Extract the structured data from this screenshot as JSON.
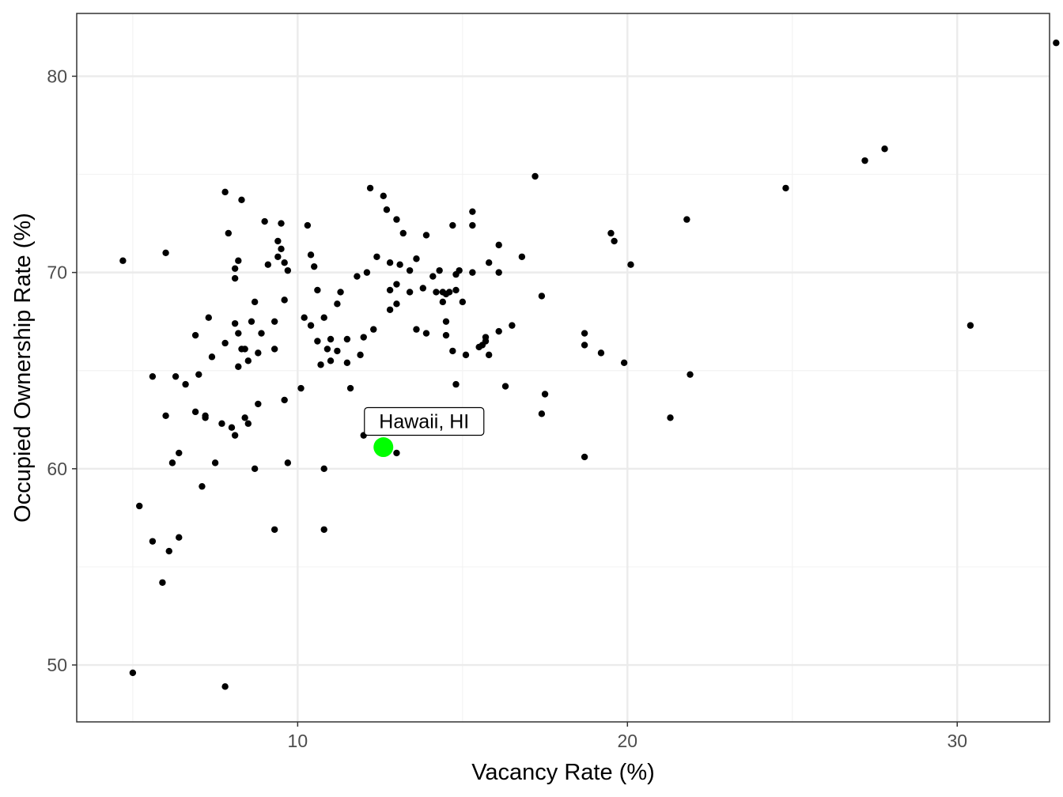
{
  "chart_data": {
    "type": "scatter",
    "title": "",
    "xlabel": "Vacancy Rate (%)",
    "ylabel": "Occupied Ownership Rate (%)",
    "xlim": [
      3.3,
      32.8
    ],
    "ylim": [
      47.1,
      83.2
    ],
    "x_major_ticks": [
      10,
      20,
      30
    ],
    "y_major_ticks": [
      50,
      60,
      70,
      80
    ],
    "x_tick_labels": [
      "10",
      "20",
      "30"
    ],
    "y_tick_labels": [
      "50",
      "60",
      "70",
      "80"
    ],
    "grid": true,
    "legend": "none",
    "colors": {
      "point": "#000000",
      "highlight": "#00ff00",
      "grid_major": "#ebebeb",
      "grid_minor": "#f3f3f3",
      "panel_border": "#333333",
      "tick_label": "#4d4d4d"
    },
    "highlight": {
      "label": "Hawaii, HI",
      "x": 12.6,
      "y": 61.1
    },
    "points": [
      [
        4.7,
        70.6
      ],
      [
        5.0,
        49.6
      ],
      [
        5.2,
        58.1
      ],
      [
        5.6,
        56.3
      ],
      [
        5.6,
        64.7
      ],
      [
        5.9,
        54.2
      ],
      [
        6.0,
        71.0
      ],
      [
        6.0,
        62.7
      ],
      [
        6.1,
        55.8
      ],
      [
        6.2,
        60.3
      ],
      [
        6.3,
        64.7
      ],
      [
        6.4,
        56.5
      ],
      [
        6.4,
        60.8
      ],
      [
        6.6,
        64.3
      ],
      [
        6.9,
        62.9
      ],
      [
        6.9,
        66.8
      ],
      [
        7.0,
        64.8
      ],
      [
        7.1,
        59.1
      ],
      [
        7.2,
        62.6
      ],
      [
        7.2,
        62.7
      ],
      [
        7.3,
        67.7
      ],
      [
        7.4,
        65.7
      ],
      [
        7.5,
        60.3
      ],
      [
        7.7,
        62.3
      ],
      [
        7.8,
        66.4
      ],
      [
        7.8,
        74.1
      ],
      [
        7.8,
        48.9
      ],
      [
        7.9,
        72.0
      ],
      [
        8.0,
        62.1
      ],
      [
        8.1,
        69.7
      ],
      [
        8.1,
        70.2
      ],
      [
        8.1,
        67.4
      ],
      [
        8.2,
        70.6
      ],
      [
        8.2,
        66.9
      ],
      [
        8.2,
        65.2
      ],
      [
        8.1,
        61.7
      ],
      [
        8.3,
        73.7
      ],
      [
        8.3,
        66.1
      ],
      [
        8.4,
        66.1
      ],
      [
        8.4,
        62.6
      ],
      [
        8.5,
        65.5
      ],
      [
        8.5,
        62.3
      ],
      [
        8.6,
        67.5
      ],
      [
        8.7,
        60.0
      ],
      [
        8.7,
        68.5
      ],
      [
        8.8,
        65.9
      ],
      [
        8.8,
        63.3
      ],
      [
        8.9,
        66.9
      ],
      [
        9.0,
        72.6
      ],
      [
        9.1,
        70.4
      ],
      [
        9.3,
        67.5
      ],
      [
        9.3,
        66.1
      ],
      [
        9.3,
        56.9
      ],
      [
        9.4,
        70.8
      ],
      [
        9.4,
        71.6
      ],
      [
        9.5,
        72.5
      ],
      [
        9.5,
        71.2
      ],
      [
        9.6,
        70.5
      ],
      [
        9.6,
        68.6
      ],
      [
        9.6,
        63.5
      ],
      [
        9.7,
        70.1
      ],
      [
        9.7,
        60.3
      ],
      [
        10.1,
        64.1
      ],
      [
        10.2,
        67.7
      ],
      [
        10.3,
        72.4
      ],
      [
        10.4,
        67.3
      ],
      [
        10.4,
        70.9
      ],
      [
        10.5,
        70.3
      ],
      [
        10.6,
        69.1
      ],
      [
        10.6,
        66.5
      ],
      [
        10.7,
        65.3
      ],
      [
        10.8,
        67.7
      ],
      [
        10.8,
        60.0
      ],
      [
        10.8,
        56.9
      ],
      [
        10.9,
        66.1
      ],
      [
        11.0,
        66.6
      ],
      [
        11.0,
        65.5
      ],
      [
        11.2,
        66.0
      ],
      [
        11.2,
        68.4
      ],
      [
        11.3,
        69.0
      ],
      [
        11.5,
        66.6
      ],
      [
        11.5,
        65.4
      ],
      [
        11.6,
        64.1
      ],
      [
        11.8,
        69.8
      ],
      [
        11.9,
        65.8
      ],
      [
        12.0,
        66.7
      ],
      [
        12.0,
        61.7
      ],
      [
        12.1,
        70.0
      ],
      [
        12.2,
        74.3
      ],
      [
        12.3,
        67.1
      ],
      [
        12.4,
        70.8
      ],
      [
        12.6,
        73.9
      ],
      [
        12.7,
        73.2
      ],
      [
        12.8,
        70.5
      ],
      [
        12.8,
        69.1
      ],
      [
        12.8,
        68.1
      ],
      [
        12.9,
        62.2
      ],
      [
        13.0,
        72.7
      ],
      [
        13.0,
        69.4
      ],
      [
        13.0,
        68.4
      ],
      [
        13.1,
        70.4
      ],
      [
        13.2,
        72.0
      ],
      [
        13.2,
        62.6
      ],
      [
        13.0,
        60.8
      ],
      [
        13.4,
        70.1
      ],
      [
        13.4,
        69.0
      ],
      [
        13.6,
        70.7
      ],
      [
        13.6,
        67.1
      ],
      [
        13.8,
        69.2
      ],
      [
        13.9,
        66.9
      ],
      [
        13.9,
        71.9
      ],
      [
        14.1,
        69.8
      ],
      [
        14.2,
        69.0
      ],
      [
        14.3,
        70.1
      ],
      [
        14.4,
        68.5
      ],
      [
        14.4,
        69.0
      ],
      [
        14.5,
        68.9
      ],
      [
        14.5,
        66.8
      ],
      [
        14.5,
        67.5
      ],
      [
        14.6,
        69.0
      ],
      [
        14.7,
        66.0
      ],
      [
        14.7,
        72.4
      ],
      [
        14.8,
        69.9
      ],
      [
        14.8,
        69.1
      ],
      [
        14.8,
        64.3
      ],
      [
        14.9,
        70.1
      ],
      [
        15.0,
        68.5
      ],
      [
        15.1,
        65.8
      ],
      [
        15.3,
        73.1
      ],
      [
        15.3,
        72.4
      ],
      [
        15.3,
        70.0
      ],
      [
        15.5,
        66.2
      ],
      [
        15.6,
        66.3
      ],
      [
        15.7,
        66.5
      ],
      [
        15.7,
        66.7
      ],
      [
        15.8,
        65.8
      ],
      [
        15.8,
        70.5
      ],
      [
        16.1,
        71.4
      ],
      [
        16.1,
        70.0
      ],
      [
        16.1,
        67.0
      ],
      [
        16.3,
        64.2
      ],
      [
        16.5,
        67.3
      ],
      [
        16.8,
        70.8
      ],
      [
        17.2,
        74.9
      ],
      [
        17.4,
        68.8
      ],
      [
        17.4,
        62.8
      ],
      [
        17.5,
        63.8
      ],
      [
        18.7,
        66.9
      ],
      [
        18.7,
        66.3
      ],
      [
        18.7,
        60.6
      ],
      [
        19.2,
        65.9
      ],
      [
        19.5,
        72.0
      ],
      [
        19.6,
        71.6
      ],
      [
        19.9,
        65.4
      ],
      [
        20.1,
        70.4
      ],
      [
        21.3,
        62.6
      ],
      [
        21.8,
        72.7
      ],
      [
        21.9,
        64.8
      ],
      [
        24.8,
        74.3
      ],
      [
        27.2,
        75.7
      ],
      [
        27.8,
        76.3
      ],
      [
        30.4,
        67.3
      ],
      [
        33.0,
        81.7
      ]
    ]
  }
}
